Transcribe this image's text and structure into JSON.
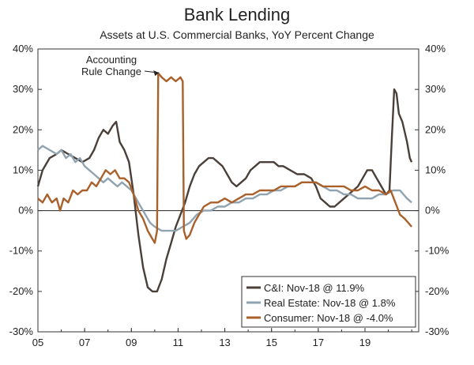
{
  "chart_data": {
    "type": "line",
    "title": "Bank Lending",
    "subtitle": "Assets at U.S. Commercial Banks, YoY Percent Change",
    "xlabel": "",
    "ylabel": "",
    "xlim": [
      2005,
      2021.3
    ],
    "ylim": [
      -30,
      40
    ],
    "y_ticks": [
      -30,
      -20,
      -10,
      0,
      10,
      20,
      30,
      40
    ],
    "y_tick_labels": [
      "-30%",
      "-20%",
      "-10%",
      "0%",
      "10%",
      "20%",
      "30%",
      "40%"
    ],
    "x_ticks": [
      2005,
      2007,
      2009,
      2011,
      2013,
      2015,
      2017,
      2019
    ],
    "x_tick_labels": [
      "05",
      "07",
      "09",
      "11",
      "13",
      "15",
      "17",
      "19"
    ],
    "grid": false,
    "legend_position": "bottom-right",
    "annotation": {
      "lines": [
        "Accounting",
        "Rule Change"
      ],
      "x": 2010.25,
      "y": 34.5
    },
    "series": [
      {
        "name": "C&I: Nov-18 @ 11.9%",
        "color": "#4b3f39",
        "points": [
          [
            2005.0,
            6
          ],
          [
            2005.2,
            10
          ],
          [
            2005.5,
            13
          ],
          [
            2005.8,
            14
          ],
          [
            2006.0,
            15
          ],
          [
            2006.3,
            14
          ],
          [
            2006.6,
            13
          ],
          [
            2006.9,
            12
          ],
          [
            2007.2,
            13
          ],
          [
            2007.4,
            15
          ],
          [
            2007.6,
            18
          ],
          [
            2007.8,
            20
          ],
          [
            2008.0,
            19
          ],
          [
            2008.2,
            21
          ],
          [
            2008.35,
            22
          ],
          [
            2008.5,
            17
          ],
          [
            2008.7,
            15
          ],
          [
            2008.9,
            12
          ],
          [
            2009.1,
            4
          ],
          [
            2009.3,
            -6
          ],
          [
            2009.5,
            -14
          ],
          [
            2009.7,
            -19
          ],
          [
            2009.9,
            -20
          ],
          [
            2010.1,
            -20
          ],
          [
            2010.3,
            -17
          ],
          [
            2010.5,
            -12
          ],
          [
            2010.7,
            -8
          ],
          [
            2010.9,
            -4
          ],
          [
            2011.1,
            -1
          ],
          [
            2011.3,
            2
          ],
          [
            2011.5,
            6
          ],
          [
            2011.7,
            9
          ],
          [
            2011.9,
            11
          ],
          [
            2012.1,
            12
          ],
          [
            2012.3,
            13
          ],
          [
            2012.5,
            13
          ],
          [
            2012.7,
            12
          ],
          [
            2012.9,
            11
          ],
          [
            2013.1,
            9
          ],
          [
            2013.3,
            7
          ],
          [
            2013.5,
            6
          ],
          [
            2013.7,
            7
          ],
          [
            2013.9,
            8
          ],
          [
            2014.1,
            10
          ],
          [
            2014.3,
            11
          ],
          [
            2014.5,
            12
          ],
          [
            2014.7,
            12
          ],
          [
            2014.9,
            12
          ],
          [
            2015.1,
            12
          ],
          [
            2015.3,
            11
          ],
          [
            2015.5,
            11
          ],
          [
            2015.8,
            10
          ],
          [
            2016.1,
            9
          ],
          [
            2016.4,
            9
          ],
          [
            2016.7,
            8
          ],
          [
            2016.9,
            6
          ],
          [
            2017.1,
            3
          ],
          [
            2017.3,
            2
          ],
          [
            2017.5,
            1
          ],
          [
            2017.7,
            1
          ],
          [
            2017.9,
            2
          ],
          [
            2018.1,
            3
          ],
          [
            2018.3,
            4
          ],
          [
            2018.5,
            5
          ],
          [
            2018.7,
            6
          ],
          [
            2018.9,
            8
          ],
          [
            2019.1,
            10
          ],
          [
            2019.3,
            10
          ],
          [
            2019.5,
            8
          ],
          [
            2019.7,
            6
          ],
          [
            2019.9,
            4
          ],
          [
            2020.05,
            5
          ],
          [
            2020.15,
            18
          ],
          [
            2020.25,
            30
          ],
          [
            2020.35,
            29
          ],
          [
            2020.45,
            24
          ],
          [
            2020.6,
            22
          ],
          [
            2020.8,
            17
          ],
          [
            2020.92,
            13
          ],
          [
            2021.0,
            12
          ]
        ]
      },
      {
        "name": "Real Estate: Nov-18 @ 1.8%",
        "color": "#8fa3b1",
        "points": [
          [
            2005.0,
            15
          ],
          [
            2005.2,
            16
          ],
          [
            2005.5,
            15
          ],
          [
            2005.8,
            14
          ],
          [
            2006.0,
            15
          ],
          [
            2006.2,
            13
          ],
          [
            2006.4,
            14
          ],
          [
            2006.6,
            12
          ],
          [
            2006.8,
            13
          ],
          [
            2007.0,
            11
          ],
          [
            2007.2,
            10
          ],
          [
            2007.4,
            9
          ],
          [
            2007.6,
            8
          ],
          [
            2007.8,
            7
          ],
          [
            2008.0,
            8
          ],
          [
            2008.2,
            7
          ],
          [
            2008.4,
            6
          ],
          [
            2008.6,
            7
          ],
          [
            2008.8,
            6
          ],
          [
            2009.0,
            5
          ],
          [
            2009.2,
            3
          ],
          [
            2009.4,
            1
          ],
          [
            2009.6,
            -1
          ],
          [
            2009.8,
            -3
          ],
          [
            2010.0,
            -4
          ],
          [
            2010.3,
            -5
          ],
          [
            2010.6,
            -5
          ],
          [
            2010.9,
            -5
          ],
          [
            2011.2,
            -4
          ],
          [
            2011.5,
            -3
          ],
          [
            2011.8,
            -1
          ],
          [
            2012.1,
            0
          ],
          [
            2012.4,
            0
          ],
          [
            2012.7,
            1
          ],
          [
            2013.0,
            1
          ],
          [
            2013.3,
            2
          ],
          [
            2013.6,
            2
          ],
          [
            2013.9,
            3
          ],
          [
            2014.2,
            3
          ],
          [
            2014.5,
            4
          ],
          [
            2014.8,
            4
          ],
          [
            2015.1,
            5
          ],
          [
            2015.4,
            5
          ],
          [
            2015.7,
            6
          ],
          [
            2016.0,
            6
          ],
          [
            2016.3,
            7
          ],
          [
            2016.6,
            7
          ],
          [
            2016.9,
            7
          ],
          [
            2017.2,
            6
          ],
          [
            2017.5,
            5
          ],
          [
            2017.8,
            5
          ],
          [
            2018.1,
            4
          ],
          [
            2018.4,
            4
          ],
          [
            2018.7,
            3
          ],
          [
            2019.0,
            3
          ],
          [
            2019.3,
            3
          ],
          [
            2019.6,
            4
          ],
          [
            2019.9,
            4
          ],
          [
            2020.2,
            5
          ],
          [
            2020.5,
            5
          ],
          [
            2020.8,
            3
          ],
          [
            2021.0,
            2
          ]
        ]
      },
      {
        "name": "Consumer: Nov-18 @ -4.0%",
        "color": "#a9602a",
        "points": [
          [
            2005.0,
            3
          ],
          [
            2005.2,
            2
          ],
          [
            2005.4,
            4
          ],
          [
            2005.6,
            2
          ],
          [
            2005.8,
            3
          ],
          [
            2005.95,
            0
          ],
          [
            2006.1,
            3
          ],
          [
            2006.3,
            2
          ],
          [
            2006.5,
            5
          ],
          [
            2006.7,
            4
          ],
          [
            2006.9,
            5
          ],
          [
            2007.1,
            5
          ],
          [
            2007.3,
            7
          ],
          [
            2007.5,
            6
          ],
          [
            2007.7,
            8
          ],
          [
            2007.9,
            10
          ],
          [
            2008.1,
            9
          ],
          [
            2008.3,
            10
          ],
          [
            2008.5,
            8
          ],
          [
            2008.7,
            8
          ],
          [
            2008.9,
            7
          ],
          [
            2009.1,
            4
          ],
          [
            2009.3,
            0
          ],
          [
            2009.5,
            -2
          ],
          [
            2009.7,
            -5
          ],
          [
            2009.9,
            -7
          ],
          [
            2010.0,
            -8
          ],
          [
            2010.1,
            -5
          ],
          [
            2010.15,
            34
          ],
          [
            2010.3,
            33
          ],
          [
            2010.5,
            32
          ],
          [
            2010.7,
            33
          ],
          [
            2010.9,
            32
          ],
          [
            2011.1,
            33
          ],
          [
            2011.2,
            32
          ],
          [
            2011.25,
            -5
          ],
          [
            2011.35,
            -7
          ],
          [
            2011.5,
            -6
          ],
          [
            2011.7,
            -3
          ],
          [
            2011.9,
            -1
          ],
          [
            2012.1,
            1
          ],
          [
            2012.4,
            2
          ],
          [
            2012.7,
            2
          ],
          [
            2013.0,
            3
          ],
          [
            2013.3,
            2
          ],
          [
            2013.6,
            3
          ],
          [
            2013.9,
            4
          ],
          [
            2014.2,
            4
          ],
          [
            2014.5,
            5
          ],
          [
            2014.8,
            5
          ],
          [
            2015.1,
            5
          ],
          [
            2015.4,
            6
          ],
          [
            2015.7,
            6
          ],
          [
            2016.0,
            6
          ],
          [
            2016.3,
            7
          ],
          [
            2016.6,
            7
          ],
          [
            2016.9,
            7
          ],
          [
            2017.2,
            6
          ],
          [
            2017.5,
            6
          ],
          [
            2017.8,
            6
          ],
          [
            2018.1,
            6
          ],
          [
            2018.4,
            5
          ],
          [
            2018.7,
            5
          ],
          [
            2019.0,
            6
          ],
          [
            2019.3,
            5
          ],
          [
            2019.6,
            5
          ],
          [
            2019.9,
            4
          ],
          [
            2020.1,
            5
          ],
          [
            2020.3,
            2
          ],
          [
            2020.5,
            -1
          ],
          [
            2020.7,
            -2
          ],
          [
            2020.85,
            -3
          ],
          [
            2021.0,
            -4
          ]
        ]
      }
    ]
  }
}
